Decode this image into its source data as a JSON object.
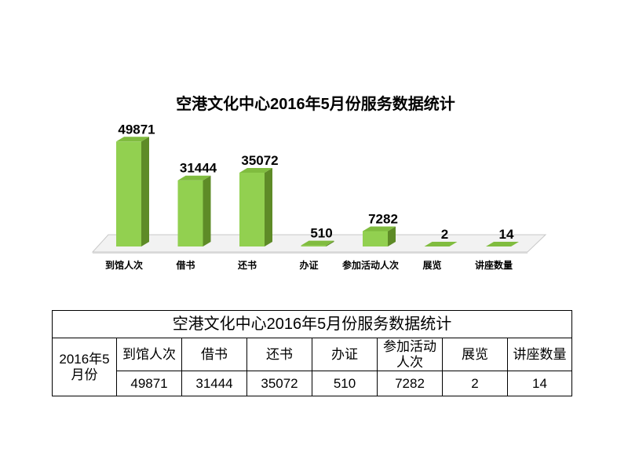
{
  "chart_data": {
    "type": "bar",
    "style": "3d",
    "title": "空港文化中心2016年5月份服务数据统计",
    "categories": [
      "到馆人次",
      "借书",
      "还书",
      "办证",
      "参加活动人次",
      "展览",
      "讲座数量"
    ],
    "values": [
      49871,
      31444,
      35072,
      510,
      7282,
      2,
      14
    ],
    "data_labels": true,
    "legend": "none",
    "grid": false,
    "colors": {
      "front": "#92D050",
      "side": "#5E8B27",
      "top": "#80BC3F",
      "floor": "#F2F2F2",
      "floor_edge": "#C8C8C8"
    }
  },
  "table": {
    "title": "空港文化中心2016年5月份服务数据统计",
    "row_header": "2016年5月份",
    "headers": [
      "到馆人次",
      "借书",
      "还书",
      "办证",
      "参加活动人次",
      "展览",
      "讲座数量"
    ],
    "values": [
      "49871",
      "31444",
      "35072",
      "510",
      "7282",
      "2",
      "14"
    ]
  }
}
